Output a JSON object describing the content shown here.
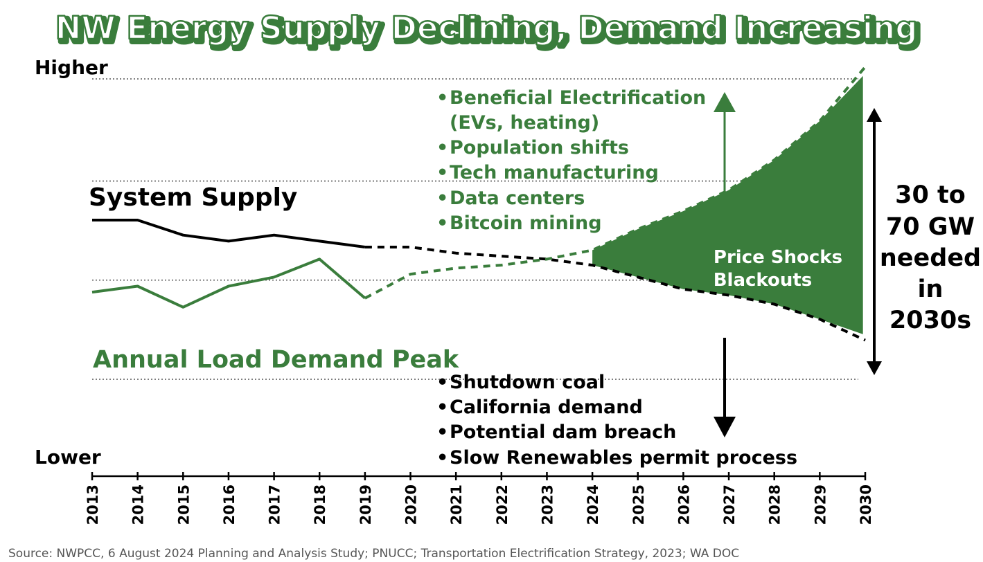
{
  "chart_data": {
    "type": "line",
    "title": "NW Energy Supply Declining, Demand Increasing",
    "ylabel_top": "Higher",
    "ylabel_bottom": "Lower",
    "x": [
      2013,
      2014,
      2015,
      2016,
      2017,
      2018,
      2019,
      2020,
      2021,
      2022,
      2023,
      2024,
      2025,
      2026,
      2027,
      2028,
      2029,
      2030
    ],
    "xlabels": [
      "2013",
      "2014",
      "2015",
      "2016",
      "2017",
      "2018",
      "2019",
      "2020",
      "2021",
      "2022",
      "2023",
      "2024",
      "2025",
      "2026",
      "2027",
      "2028",
      "2029",
      "2030"
    ],
    "ylim": [
      0,
      100
    ],
    "gridlines": [
      0,
      33,
      66,
      100
    ],
    "series": [
      {
        "name": "System Supply",
        "label": "System Supply",
        "color": "#000000",
        "historical": [
          [
            2013,
            53
          ],
          [
            2014,
            53
          ],
          [
            2015,
            48
          ],
          [
            2016,
            46
          ],
          [
            2017,
            48
          ],
          [
            2018,
            46
          ],
          [
            2019,
            44
          ]
        ],
        "projected": [
          [
            2019,
            44
          ],
          [
            2020,
            44
          ],
          [
            2021,
            42
          ],
          [
            2022,
            41
          ],
          [
            2023,
            40
          ],
          [
            2024,
            38
          ],
          [
            2025,
            34
          ],
          [
            2026,
            30
          ],
          [
            2027,
            28
          ],
          [
            2028,
            25
          ],
          [
            2029,
            20
          ],
          [
            2030,
            13
          ]
        ]
      },
      {
        "name": "Annual Load Demand Peak",
        "label": "Annual Load Demand Peak",
        "color": "#3a7d3c",
        "historical": [
          [
            2013,
            29
          ],
          [
            2014,
            31
          ],
          [
            2015,
            24
          ],
          [
            2016,
            31
          ],
          [
            2017,
            34
          ],
          [
            2018,
            40
          ],
          [
            2019,
            27
          ]
        ],
        "projected": [
          [
            2019,
            27
          ],
          [
            2020,
            35
          ],
          [
            2021,
            37
          ],
          [
            2022,
            38
          ],
          [
            2023,
            40
          ],
          [
            2024,
            43
          ],
          [
            2025,
            50
          ],
          [
            2026,
            56
          ],
          [
            2027,
            63
          ],
          [
            2028,
            73
          ],
          [
            2029,
            86
          ],
          [
            2030,
            104
          ]
        ]
      }
    ],
    "gap_label_lines": [
      "Price Shocks",
      "Blackouts"
    ],
    "gap_range_lines": [
      "30 to",
      "70 GW",
      "needed",
      "in",
      "2030s"
    ],
    "demand_drivers": [
      "Beneficial Electrification",
      "(EVs, heating)",
      "Population shifts",
      "Tech manufacturing",
      "Data centers",
      "Bitcoin mining"
    ],
    "supply_reducers": [
      "Shutdown coal",
      "California demand",
      "Potential dam breach",
      "Slow Renewables permit process"
    ],
    "bullet": "•",
    "source": "Source: NWPCC, 6 August 2024 Planning and Analysis Study; PNUCC; Transportation Electrification Strategy, 2023; WA DOC"
  },
  "colors": {
    "green": "#3a7d3c",
    "black": "#000000",
    "white": "#ffffff"
  }
}
